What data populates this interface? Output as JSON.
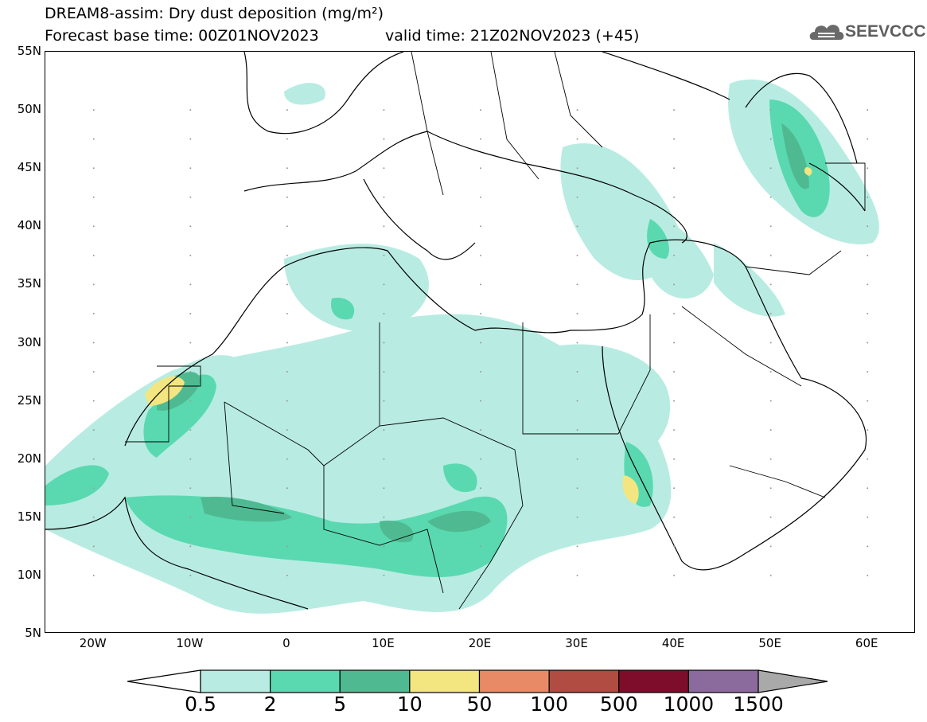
{
  "header": {
    "title_line1": "DREAM8-assim: Dry dust deposition (mg/m²)",
    "title_line2": "Forecast base time: 00Z01NOV2023",
    "valid_time": "valid time: 21Z02NOV2023 (+45)",
    "logo_text": "SEEVCCC"
  },
  "map": {
    "lat_labels": [
      "55N",
      "50N",
      "45N",
      "40N",
      "35N",
      "30N",
      "25N",
      "20N",
      "15N",
      "10N",
      "5N"
    ],
    "lon_labels": [
      "20W",
      "10W",
      "0",
      "10E",
      "20E",
      "30E",
      "40E",
      "50E",
      "60E"
    ],
    "lat_range": [
      5,
      55
    ],
    "lon_range": [
      -25,
      65
    ]
  },
  "colorbar": {
    "labels": [
      "0.5",
      "2",
      "5",
      "10",
      "50",
      "100",
      "500",
      "1000",
      "1500"
    ],
    "colors": [
      "#b8ece2",
      "#5ad9b0",
      "#4fba92",
      "#f3e680",
      "#e98a67",
      "#b04c42",
      "#7d0d2a",
      "#8b6a9e",
      "#a9a9a9"
    ]
  }
}
